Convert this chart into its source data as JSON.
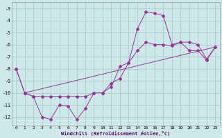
{
  "xlabel": "Windchill (Refroidissement éolien,°C)",
  "bg_color": "#cce8e8",
  "grid_color": "#aacccc",
  "line_color": "#993399",
  "ylim": [
    -12.7,
    -2.5
  ],
  "xlim": [
    -0.5,
    23.5
  ],
  "yticks": [
    -12,
    -11,
    -10,
    -9,
    -8,
    -7,
    -6,
    -5,
    -4,
    -3
  ],
  "xticks": [
    0,
    1,
    2,
    3,
    4,
    5,
    6,
    7,
    8,
    9,
    10,
    11,
    12,
    13,
    14,
    15,
    16,
    17,
    18,
    19,
    20,
    21,
    22,
    23
  ],
  "line1_x": [
    0,
    1,
    2,
    3,
    4,
    5,
    6,
    7,
    8,
    9,
    10,
    11,
    12,
    13,
    14,
    15,
    16,
    17,
    18,
    19,
    20,
    21,
    22,
    23
  ],
  "line1_y": [
    -8,
    -10,
    -10.3,
    -12,
    -12.2,
    -11,
    -11.1,
    -12.2,
    -11.3,
    -10,
    -10,
    -9.5,
    -7.8,
    -7.5,
    -4.7,
    -3.3,
    -3.4,
    -3.6,
    -6,
    -5.8,
    -5.8,
    -6,
    -7.2,
    -6.2
  ],
  "line2_x": [
    0,
    1,
    2,
    3,
    4,
    5,
    6,
    7,
    8,
    9,
    10,
    11,
    12,
    13,
    14,
    15,
    16,
    17,
    18,
    19,
    20,
    21,
    22,
    23
  ],
  "line2_y": [
    -8,
    -10,
    -10.3,
    -10.3,
    -10.3,
    -10.3,
    -10.3,
    -10.3,
    -10.3,
    -10,
    -10,
    -9.2,
    -8.8,
    -7.5,
    -6.5,
    -5.8,
    -6,
    -6.0,
    -6.1,
    -5.8,
    -6.5,
    -6.5,
    -7.3,
    -6.2
  ],
  "line3_x": [
    1,
    23
  ],
  "line3_y": [
    -10,
    -6.2
  ]
}
